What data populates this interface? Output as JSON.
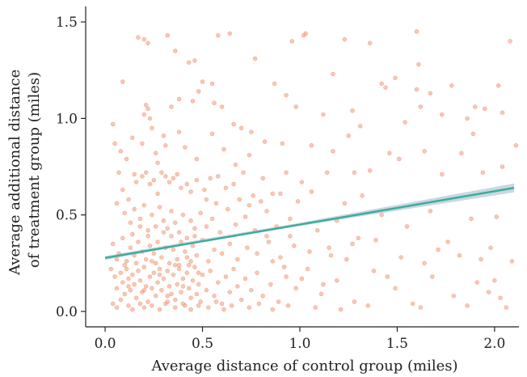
{
  "chart_data": {
    "type": "scatter",
    "title": "",
    "xlabel": "Average distance of control group (miles)",
    "ylabel_lines": [
      "Average additional distance",
      "of treatment group (miles)"
    ],
    "xlim": [
      -0.1,
      2.15
    ],
    "ylim": [
      -0.08,
      1.58
    ],
    "xticks": [
      0.0,
      0.5,
      1.0,
      1.5,
      2.0
    ],
    "xtick_labels": [
      "0.0",
      "0.5",
      "1.0",
      "1.5",
      "2.0"
    ],
    "yticks": [
      0.0,
      0.5,
      1.0,
      1.5
    ],
    "ytick_labels": [
      "0.0",
      "0.5",
      "1.0",
      "1.5"
    ],
    "grid": false,
    "legend": "none",
    "point_color": "#F4A582",
    "point_edge_color": "#E8825C",
    "fit_line_color": "#3AAE9A",
    "ci_band_color": "#9FB4CC",
    "fit_line": {
      "x": [
        0.0,
        2.1
      ],
      "y": [
        0.277,
        0.64
      ]
    },
    "ci_band": {
      "x": [
        0.0,
        0.5,
        1.0,
        1.5,
        2.1
      ],
      "lower": [
        0.267,
        0.358,
        0.443,
        0.522,
        0.617
      ],
      "upper": [
        0.287,
        0.374,
        0.459,
        0.552,
        0.663
      ]
    },
    "points": [
      [
        0.17,
        1.42
      ],
      [
        0.2,
        1.41
      ],
      [
        0.22,
        1.39
      ],
      [
        0.32,
        1.43
      ],
      [
        0.36,
        1.35
      ],
      [
        0.43,
        1.29
      ],
      [
        0.46,
        1.3
      ],
      [
        0.5,
        1.19
      ],
      [
        0.55,
        1.18
      ],
      [
        0.58,
        1.43
      ],
      [
        0.64,
        1.44
      ],
      [
        0.77,
        1.31
      ],
      [
        0.96,
        1.4
      ],
      [
        1.02,
        1.43
      ],
      [
        1.03,
        1.44
      ],
      [
        1.23,
        1.41
      ],
      [
        1.36,
        1.39
      ],
      [
        1.6,
        1.45
      ],
      [
        1.61,
        1.28
      ],
      [
        2.08,
        1.4
      ],
      [
        0.09,
        1.19
      ],
      [
        0.21,
        1.07
      ],
      [
        0.22,
        1.05
      ],
      [
        0.2,
        1.02
      ],
      [
        0.23,
        1.0
      ],
      [
        0.34,
        1.06
      ],
      [
        0.45,
        1.09
      ],
      [
        0.48,
        1.14
      ],
      [
        0.56,
        1.08
      ],
      [
        0.6,
        1.06
      ],
      [
        0.66,
        0.97
      ],
      [
        0.7,
        0.95
      ],
      [
        0.75,
        0.93
      ],
      [
        0.87,
        1.18
      ],
      [
        0.93,
        1.12
      ],
      [
        0.98,
        1.06
      ],
      [
        1.12,
        1.02
      ],
      [
        1.17,
        1.23
      ],
      [
        1.27,
        1.04
      ],
      [
        1.31,
        0.96
      ],
      [
        1.42,
        1.18
      ],
      [
        1.44,
        1.16
      ],
      [
        1.49,
        1.21
      ],
      [
        1.54,
        0.98
      ],
      [
        1.6,
        1.15
      ],
      [
        1.62,
        1.06
      ],
      [
        1.67,
        1.13
      ],
      [
        1.73,
        1.02
      ],
      [
        1.78,
        1.17
      ],
      [
        1.86,
        1.0
      ],
      [
        1.9,
        1.06
      ],
      [
        1.95,
        1.05
      ],
      [
        2.02,
        1.17
      ],
      [
        2.04,
        1.03
      ],
      [
        0.04,
        0.97
      ],
      [
        0.05,
        0.87
      ],
      [
        0.08,
        0.83
      ],
      [
        0.11,
        0.79
      ],
      [
        0.14,
        0.9
      ],
      [
        0.26,
        0.82
      ],
      [
        0.31,
        0.86
      ],
      [
        0.38,
        0.93
      ],
      [
        0.41,
        0.85
      ],
      [
        0.47,
        0.79
      ],
      [
        0.55,
        0.92
      ],
      [
        0.61,
        0.84
      ],
      [
        0.67,
        0.76
      ],
      [
        0.74,
        0.81
      ],
      [
        0.82,
        0.88
      ],
      [
        0.91,
        0.87
      ],
      [
        1.06,
        0.86
      ],
      [
        1.17,
        0.83
      ],
      [
        1.25,
        0.91
      ],
      [
        1.46,
        0.82
      ],
      [
        1.64,
        0.83
      ],
      [
        1.83,
        0.82
      ],
      [
        1.89,
        0.92
      ],
      [
        2.11,
        0.86
      ],
      [
        0.07,
        0.72
      ],
      [
        0.09,
        0.63
      ],
      [
        0.12,
        0.58
      ],
      [
        0.15,
        0.71
      ],
      [
        0.16,
        0.67
      ],
      [
        0.19,
        0.7
      ],
      [
        0.21,
        0.72
      ],
      [
        0.23,
        0.66
      ],
      [
        0.25,
        0.68
      ],
      [
        0.27,
        0.61
      ],
      [
        0.29,
        0.72
      ],
      [
        0.31,
        0.7
      ],
      [
        0.33,
        0.67
      ],
      [
        0.35,
        0.69
      ],
      [
        0.37,
        0.71
      ],
      [
        0.39,
        0.64
      ],
      [
        0.42,
        0.66
      ],
      [
        0.44,
        0.62
      ],
      [
        0.47,
        0.68
      ],
      [
        0.51,
        0.63
      ],
      [
        0.54,
        0.69
      ],
      [
        0.58,
        0.7
      ],
      [
        0.62,
        0.64
      ],
      [
        0.66,
        0.66
      ],
      [
        0.71,
        0.72
      ],
      [
        0.76,
        0.6
      ],
      [
        0.81,
        0.69
      ],
      [
        0.86,
        0.61
      ],
      [
        0.93,
        0.72
      ],
      [
        1.01,
        0.67
      ],
      [
        1.14,
        0.72
      ],
      [
        1.23,
        0.56
      ],
      [
        1.28,
        0.72
      ],
      [
        1.36,
        0.73
      ],
      [
        1.51,
        0.79
      ],
      [
        1.73,
        0.71
      ],
      [
        1.94,
        0.72
      ],
      [
        2.04,
        0.75
      ],
      [
        0.06,
        0.56
      ],
      [
        0.1,
        0.51
      ],
      [
        0.13,
        0.46
      ],
      [
        0.15,
        0.53
      ],
      [
        0.18,
        0.48
      ],
      [
        0.2,
        0.55
      ],
      [
        0.22,
        0.42
      ],
      [
        0.24,
        0.5
      ],
      [
        0.26,
        0.44
      ],
      [
        0.28,
        0.54
      ],
      [
        0.3,
        0.47
      ],
      [
        0.32,
        0.43
      ],
      [
        0.34,
        0.52
      ],
      [
        0.36,
        0.46
      ],
      [
        0.38,
        0.41
      ],
      [
        0.4,
        0.5
      ],
      [
        0.42,
        0.38
      ],
      [
        0.44,
        0.47
      ],
      [
        0.46,
        0.43
      ],
      [
        0.49,
        0.51
      ],
      [
        0.52,
        0.44
      ],
      [
        0.55,
        0.48
      ],
      [
        0.59,
        0.41
      ],
      [
        0.63,
        0.53
      ],
      [
        0.67,
        0.45
      ],
      [
        0.72,
        0.49
      ],
      [
        0.77,
        0.42
      ],
      [
        0.83,
        0.52
      ],
      [
        0.88,
        0.44
      ],
      [
        0.95,
        0.48
      ],
      [
        1.09,
        0.42
      ],
      [
        1.19,
        0.47
      ],
      [
        1.3,
        0.38
      ],
      [
        1.42,
        0.5
      ],
      [
        1.55,
        0.44
      ],
      [
        1.67,
        0.52
      ],
      [
        1.88,
        0.48
      ],
      [
        2.01,
        0.49
      ],
      [
        0.04,
        0.35
      ],
      [
        0.07,
        0.3
      ],
      [
        0.09,
        0.38
      ],
      [
        0.11,
        0.26
      ],
      [
        0.13,
        0.33
      ],
      [
        0.15,
        0.29
      ],
      [
        0.17,
        0.36
      ],
      [
        0.19,
        0.31
      ],
      [
        0.21,
        0.27
      ],
      [
        0.23,
        0.34
      ],
      [
        0.25,
        0.3
      ],
      [
        0.27,
        0.36
      ],
      [
        0.29,
        0.28
      ],
      [
        0.31,
        0.33
      ],
      [
        0.33,
        0.25
      ],
      [
        0.35,
        0.32
      ],
      [
        0.37,
        0.27
      ],
      [
        0.39,
        0.36
      ],
      [
        0.41,
        0.31
      ],
      [
        0.43,
        0.24
      ],
      [
        0.45,
        0.34
      ],
      [
        0.47,
        0.29
      ],
      [
        0.5,
        0.37
      ],
      [
        0.53,
        0.26
      ],
      [
        0.56,
        0.32
      ],
      [
        0.6,
        0.3
      ],
      [
        0.64,
        0.35
      ],
      [
        0.68,
        0.27
      ],
      [
        0.73,
        0.33
      ],
      [
        0.78,
        0.3
      ],
      [
        0.84,
        0.36
      ],
      [
        0.9,
        0.28
      ],
      [
        0.97,
        0.34
      ],
      [
        1.05,
        0.31
      ],
      [
        1.16,
        0.29
      ],
      [
        1.27,
        0.35
      ],
      [
        1.39,
        0.37
      ],
      [
        1.52,
        0.28
      ],
      [
        1.71,
        0.32
      ],
      [
        1.93,
        0.27
      ],
      [
        2.09,
        0.26
      ],
      [
        0.03,
        0.22
      ],
      [
        0.05,
        0.18
      ],
      [
        0.06,
        0.12
      ],
      [
        0.08,
        0.2
      ],
      [
        0.09,
        0.15
      ],
      [
        0.1,
        0.09
      ],
      [
        0.11,
        0.22
      ],
      [
        0.12,
        0.17
      ],
      [
        0.13,
        0.11
      ],
      [
        0.14,
        0.19
      ],
      [
        0.15,
        0.14
      ],
      [
        0.16,
        0.07
      ],
      [
        0.17,
        0.21
      ],
      [
        0.18,
        0.16
      ],
      [
        0.19,
        0.1
      ],
      [
        0.2,
        0.23
      ],
      [
        0.21,
        0.13
      ],
      [
        0.22,
        0.05
      ],
      [
        0.23,
        0.18
      ],
      [
        0.24,
        0.12
      ],
      [
        0.25,
        0.2
      ],
      [
        0.26,
        0.08
      ],
      [
        0.27,
        0.15
      ],
      [
        0.28,
        0.22
      ],
      [
        0.29,
        0.11
      ],
      [
        0.3,
        0.17
      ],
      [
        0.31,
        0.04
      ],
      [
        0.32,
        0.21
      ],
      [
        0.33,
        0.13
      ],
      [
        0.34,
        0.09
      ],
      [
        0.35,
        0.19
      ],
      [
        0.36,
        0.06
      ],
      [
        0.37,
        0.14
      ],
      [
        0.38,
        0.22
      ],
      [
        0.39,
        0.1
      ],
      [
        0.4,
        0.17
      ],
      [
        0.41,
        0.03
      ],
      [
        0.42,
        0.2
      ],
      [
        0.43,
        0.12
      ],
      [
        0.44,
        0.07
      ],
      [
        0.45,
        0.16
      ],
      [
        0.46,
        0.23
      ],
      [
        0.47,
        0.09
      ],
      [
        0.48,
        0.14
      ],
      [
        0.49,
        0.05
      ],
      [
        0.5,
        0.19
      ],
      [
        0.52,
        0.11
      ],
      [
        0.54,
        0.21
      ],
      [
        0.56,
        0.08
      ],
      [
        0.58,
        0.15
      ],
      [
        0.6,
        0.04
      ],
      [
        0.62,
        0.18
      ],
      [
        0.64,
        0.1
      ],
      [
        0.66,
        0.22
      ],
      [
        0.68,
        0.13
      ],
      [
        0.7,
        0.06
      ],
      [
        0.72,
        0.17
      ],
      [
        0.75,
        0.11
      ],
      [
        0.78,
        0.2
      ],
      [
        0.81,
        0.08
      ],
      [
        0.85,
        0.14
      ],
      [
        0.89,
        0.05
      ],
      [
        0.93,
        0.18
      ],
      [
        0.98,
        0.12
      ],
      [
        1.04,
        0.22
      ],
      [
        1.11,
        0.09
      ],
      [
        1.19,
        0.16
      ],
      [
        1.28,
        0.05
      ],
      [
        1.38,
        0.21
      ],
      [
        1.49,
        0.12
      ],
      [
        1.58,
        0.04
      ],
      [
        1.68,
        0.18
      ],
      [
        1.79,
        0.08
      ],
      [
        1.91,
        0.15
      ],
      [
        1.97,
        0.1
      ],
      [
        2.06,
        0.02
      ],
      [
        0.04,
        0.04
      ],
      [
        0.06,
        0.02
      ],
      [
        0.08,
        0.06
      ],
      [
        0.12,
        0.03
      ],
      [
        0.14,
        0.01
      ],
      [
        0.18,
        0.04
      ],
      [
        0.2,
        0.02
      ],
      [
        0.24,
        0.03
      ],
      [
        0.28,
        0.01
      ],
      [
        0.32,
        0.05
      ],
      [
        0.36,
        0.02
      ],
      [
        0.4,
        0.04
      ],
      [
        0.44,
        0.01
      ],
      [
        0.48,
        0.03
      ],
      [
        0.53,
        0.02
      ],
      [
        0.57,
        0.05
      ],
      [
        0.61,
        0.01
      ],
      [
        0.65,
        0.03
      ],
      [
        0.74,
        0.02
      ],
      [
        0.79,
        0.04
      ],
      [
        0.86,
        0.01
      ],
      [
        0.94,
        0.03
      ],
      [
        1.08,
        0.02
      ],
      [
        1.21,
        0.01
      ],
      [
        1.35,
        0.03
      ],
      [
        1.62,
        0.02
      ],
      [
        1.86,
        0.03
      ],
      [
        0.06,
        0.27
      ],
      [
        0.1,
        0.24
      ],
      [
        0.14,
        0.4
      ],
      [
        0.18,
        0.44
      ],
      [
        0.22,
        0.39
      ],
      [
        0.26,
        0.25
      ],
      [
        0.3,
        0.41
      ],
      [
        0.34,
        0.39
      ],
      [
        0.38,
        0.24
      ],
      [
        0.42,
        0.28
      ],
      [
        0.46,
        0.39
      ],
      [
        0.12,
        0.13
      ],
      [
        0.16,
        0.25
      ],
      [
        0.2,
        0.11
      ],
      [
        0.24,
        0.26
      ],
      [
        0.28,
        0.19
      ],
      [
        0.32,
        0.08
      ],
      [
        0.36,
        0.24
      ],
      [
        0.4,
        0.13
      ],
      [
        0.44,
        0.26
      ],
      [
        0.48,
        0.2
      ],
      [
        0.3,
        0.91
      ],
      [
        0.24,
        0.95
      ],
      [
        0.19,
        0.87
      ],
      [
        0.38,
        1.1
      ],
      [
        0.27,
        0.77
      ],
      [
        0.52,
        0.58
      ],
      [
        0.57,
        0.56
      ],
      [
        0.69,
        0.58
      ],
      [
        0.74,
        0.55
      ],
      [
        0.8,
        0.57
      ],
      [
        0.9,
        0.61
      ],
      [
        0.99,
        0.57
      ],
      [
        1.06,
        0.62
      ],
      [
        1.32,
        0.6
      ],
      [
        1.12,
        0.14
      ],
      [
        1.15,
        0.33
      ],
      [
        1.24,
        0.27
      ],
      [
        1.45,
        0.18
      ],
      [
        1.64,
        0.25
      ],
      [
        1.76,
        0.36
      ],
      [
        1.82,
        0.29
      ],
      [
        2.0,
        0.16
      ],
      [
        2.03,
        0.07
      ],
      [
        1.98,
        0.33
      ],
      [
        0.86,
        0.26
      ],
      [
        0.92,
        0.23
      ],
      [
        1.01,
        0.17
      ],
      [
        0.95,
        0.39
      ],
      [
        0.83,
        0.39
      ]
    ]
  }
}
